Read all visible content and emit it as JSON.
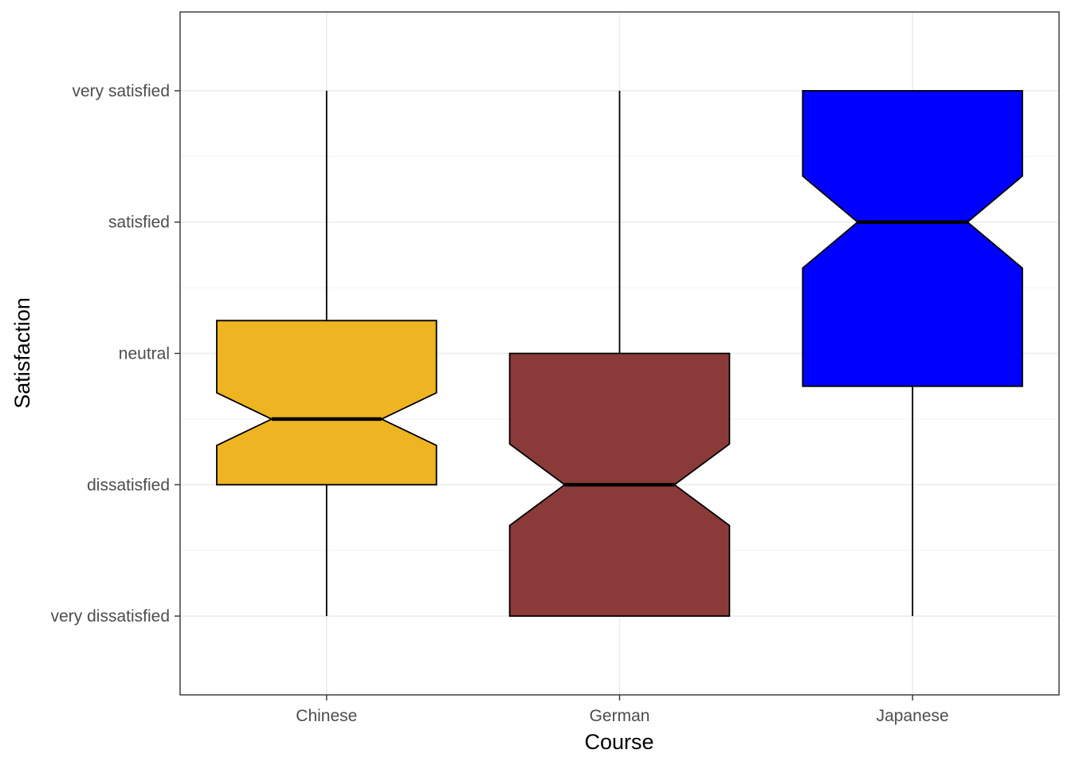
{
  "chart_data": {
    "type": "boxplot",
    "variant": "notched",
    "xlabel": "Course",
    "ylabel": "Satisfaction",
    "levels": [
      "very dissatisfied",
      "dissatisfied",
      "neutral",
      "satisfied",
      "very satisfied"
    ],
    "ylim": [
      0.4,
      5.6
    ],
    "grid": true,
    "legend": "none",
    "categories": [
      "Chinese",
      "German",
      "Japanese"
    ],
    "boxes": [
      {
        "category": "Chinese",
        "color": "#EEB422",
        "whisker_low": 1,
        "q1": 2,
        "median": 2.5,
        "q3": 3.25,
        "whisker_high": 5,
        "notch_low": 2.3,
        "notch_high": 2.7
      },
      {
        "category": "German",
        "color": "#8B3A3A",
        "whisker_low": 1,
        "q1": 1,
        "median": 2,
        "q3": 3,
        "whisker_high": 5,
        "notch_low": 1.69,
        "notch_high": 2.31
      },
      {
        "category": "Japanese",
        "color": "#0000FF",
        "whisker_low": 1,
        "q1": 2.75,
        "median": 4,
        "q3": 5,
        "whisker_high": 5,
        "notch_low": 3.65,
        "notch_high": 4.35
      }
    ]
  }
}
